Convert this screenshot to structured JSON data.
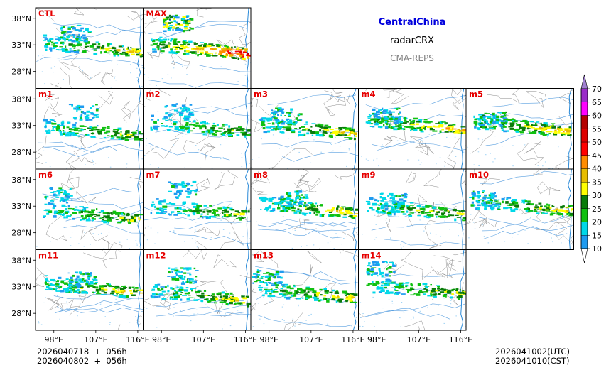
{
  "title": {
    "region": "CentralChina",
    "variable": "radarCRX",
    "source": "CMA-REPS"
  },
  "panels": [
    {
      "label": "CTL",
      "intensity": 0.55,
      "seed": 3
    },
    {
      "label": "MAX",
      "intensity": 1.0,
      "seed": 7
    },
    {
      "label": "m1",
      "intensity": 0.45,
      "seed": 11
    },
    {
      "label": "m2",
      "intensity": 0.4,
      "seed": 13
    },
    {
      "label": "m3",
      "intensity": 0.6,
      "seed": 17
    },
    {
      "label": "m4",
      "intensity": 0.65,
      "seed": 19
    },
    {
      "label": "m5",
      "intensity": 0.7,
      "seed": 23
    },
    {
      "label": "m6",
      "intensity": 0.5,
      "seed": 29
    },
    {
      "label": "m7",
      "intensity": 0.45,
      "seed": 31
    },
    {
      "label": "m8",
      "intensity": 0.6,
      "seed": 37
    },
    {
      "label": "m9",
      "intensity": 0.5,
      "seed": 41
    },
    {
      "label": "m10",
      "intensity": 0.55,
      "seed": 43
    },
    {
      "label": "m11",
      "intensity": 0.6,
      "seed": 47
    },
    {
      "label": "m12",
      "intensity": 0.55,
      "seed": 53
    },
    {
      "label": "m13",
      "intensity": 0.6,
      "seed": 59
    },
    {
      "label": "m14",
      "intensity": 0.5,
      "seed": 61
    }
  ],
  "axes": {
    "lat_ticks": [
      "38°N",
      "33°N",
      "28°N"
    ],
    "lon_ticks": [
      "98°E",
      "107°E",
      "116°E"
    ]
  },
  "colorbar": {
    "levels": [
      "10",
      "15",
      "20",
      "25",
      "30",
      "35",
      "40",
      "45",
      "50",
      "55",
      "60",
      "65",
      "70"
    ],
    "colors": [
      "#1e9bf0",
      "#00d8e8",
      "#10c010",
      "#0a7c0a",
      "#ffff00",
      "#e6bc00",
      "#ff8c00",
      "#ff0000",
      "#de0000",
      "#b40000",
      "#ff00ff",
      "#9a2cc8",
      "#a07fd0"
    ]
  },
  "footer": {
    "init_utc": "2026040718  +  056h",
    "init_cst": "2026040802  +  056h",
    "valid_utc": "2026041002(UTC)",
    "valid_cst": "2026041010(CST)"
  }
}
